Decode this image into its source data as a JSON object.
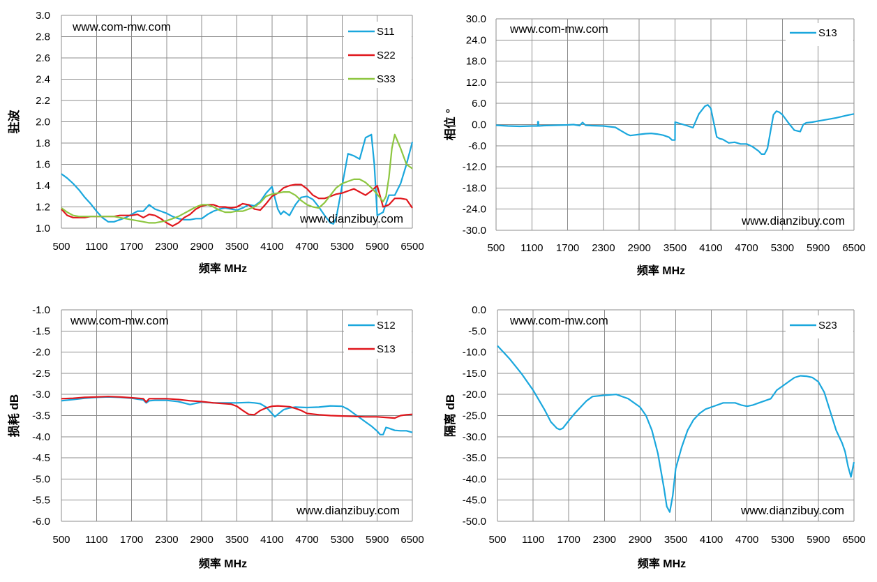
{
  "chart_data": [
    {
      "type": "line",
      "ylabel": "驻波",
      "xlabel": "频率 MHz",
      "xlim": [
        500,
        6500
      ],
      "ylim": [
        1.0,
        3.0
      ],
      "yticks": [
        "1.0",
        "1.2",
        "1.4",
        "1.6",
        "1.8",
        "2.0",
        "2.2",
        "2.4",
        "2.6",
        "2.8",
        "3.0"
      ],
      "xticks": [
        "500",
        "1100",
        "1700",
        "2300",
        "2900",
        "3500",
        "4100",
        "4700",
        "5300",
        "5900",
        "6500"
      ],
      "grid": true,
      "legend_position": "top-right",
      "watermarks": [
        "www.com-mw.com",
        "www.dianzibuy.com"
      ],
      "series": [
        {
          "name": "S11",
          "color": "#1aa7dd",
          "x": [
            500,
            600,
            700,
            800,
            900,
            1000,
            1100,
            1200,
            1300,
            1400,
            1500,
            1600,
            1700,
            1800,
            1900,
            2000,
            2100,
            2200,
            2300,
            2400,
            2500,
            2600,
            2700,
            2800,
            2900,
            3000,
            3100,
            3200,
            3300,
            3400,
            3500,
            3600,
            3700,
            3800,
            3900,
            4000,
            4100,
            4200,
            4250,
            4300,
            4400,
            4500,
            4600,
            4700,
            4800,
            4900,
            5000,
            5100,
            5150,
            5200,
            5300,
            5400,
            5500,
            5600,
            5700,
            5800,
            5850,
            5900,
            6000,
            6100,
            6200,
            6300,
            6400,
            6500
          ],
          "y": [
            1.51,
            1.47,
            1.42,
            1.36,
            1.29,
            1.23,
            1.16,
            1.1,
            1.06,
            1.06,
            1.08,
            1.1,
            1.13,
            1.16,
            1.16,
            1.22,
            1.18,
            1.16,
            1.14,
            1.11,
            1.09,
            1.08,
            1.08,
            1.09,
            1.09,
            1.13,
            1.16,
            1.18,
            1.19,
            1.18,
            1.17,
            1.19,
            1.22,
            1.21,
            1.25,
            1.33,
            1.39,
            1.18,
            1.13,
            1.16,
            1.12,
            1.22,
            1.29,
            1.3,
            1.27,
            1.2,
            1.12,
            1.05,
            1.04,
            1.1,
            1.4,
            1.7,
            1.68,
            1.65,
            1.85,
            1.88,
            1.6,
            1.12,
            1.15,
            1.31,
            1.31,
            1.42,
            1.6,
            1.81
          ]
        },
        {
          "name": "S22",
          "color": "#e0161c",
          "x": [
            500,
            600,
            700,
            800,
            900,
            1000,
            1100,
            1200,
            1300,
            1400,
            1500,
            1600,
            1700,
            1800,
            1900,
            2000,
            2100,
            2200,
            2300,
            2400,
            2500,
            2600,
            2700,
            2800,
            2900,
            3000,
            3100,
            3200,
            3300,
            3400,
            3500,
            3600,
            3700,
            3800,
            3900,
            4000,
            4100,
            4200,
            4300,
            4400,
            4500,
            4600,
            4700,
            4800,
            4900,
            5000,
            5100,
            5200,
            5300,
            5400,
            5500,
            5600,
            5700,
            5800,
            5900,
            6000,
            6100,
            6200,
            6300,
            6400,
            6500
          ],
          "y": [
            1.18,
            1.12,
            1.1,
            1.1,
            1.1,
            1.11,
            1.11,
            1.11,
            1.11,
            1.11,
            1.12,
            1.12,
            1.12,
            1.13,
            1.1,
            1.13,
            1.12,
            1.09,
            1.05,
            1.02,
            1.05,
            1.1,
            1.13,
            1.18,
            1.21,
            1.22,
            1.22,
            1.2,
            1.2,
            1.19,
            1.2,
            1.23,
            1.22,
            1.18,
            1.17,
            1.23,
            1.3,
            1.33,
            1.38,
            1.4,
            1.41,
            1.41,
            1.37,
            1.31,
            1.28,
            1.28,
            1.3,
            1.32,
            1.33,
            1.35,
            1.37,
            1.34,
            1.31,
            1.35,
            1.4,
            1.2,
            1.22,
            1.28,
            1.28,
            1.27,
            1.19
          ]
        },
        {
          "name": "S33",
          "color": "#8dc640",
          "x": [
            500,
            600,
            700,
            800,
            900,
            1000,
            1100,
            1200,
            1300,
            1400,
            1500,
            1600,
            1700,
            1800,
            1900,
            2000,
            2100,
            2200,
            2300,
            2400,
            2500,
            2600,
            2700,
            2800,
            2900,
            3000,
            3100,
            3200,
            3300,
            3400,
            3500,
            3600,
            3700,
            3800,
            3900,
            4000,
            4100,
            4200,
            4300,
            4400,
            4500,
            4600,
            4700,
            4800,
            4900,
            5000,
            5100,
            5200,
            5300,
            5400,
            5500,
            5600,
            5700,
            5800,
            5900,
            6000,
            6050,
            6100,
            6150,
            6200,
            6300,
            6400,
            6500
          ],
          "y": [
            1.19,
            1.15,
            1.12,
            1.11,
            1.11,
            1.11,
            1.11,
            1.11,
            1.11,
            1.11,
            1.1,
            1.09,
            1.08,
            1.07,
            1.06,
            1.05,
            1.05,
            1.06,
            1.07,
            1.09,
            1.11,
            1.14,
            1.17,
            1.2,
            1.22,
            1.22,
            1.2,
            1.17,
            1.15,
            1.15,
            1.16,
            1.16,
            1.18,
            1.2,
            1.24,
            1.3,
            1.32,
            1.33,
            1.34,
            1.34,
            1.31,
            1.26,
            1.22,
            1.2,
            1.19,
            1.24,
            1.31,
            1.38,
            1.42,
            1.44,
            1.46,
            1.46,
            1.43,
            1.38,
            1.32,
            1.25,
            1.3,
            1.48,
            1.75,
            1.88,
            1.75,
            1.6,
            1.56
          ]
        }
      ]
    },
    {
      "type": "line",
      "ylabel": "相位 °",
      "xlabel": "频率 MHz",
      "xlim": [
        500,
        6500
      ],
      "ylim": [
        -30,
        30
      ],
      "yticks": [
        "-30.0",
        "-24.0",
        "-18.0",
        "-12.0",
        "-6.0",
        "0.0",
        "6.0",
        "12.0",
        "18.0",
        "24.0",
        "30.0"
      ],
      "xticks": [
        "500",
        "1100",
        "1700",
        "2300",
        "2900",
        "3500",
        "4100",
        "4700",
        "5300",
        "5900",
        "6500"
      ],
      "grid": true,
      "legend_position": "top-right",
      "watermarks": [
        "www.com-mw.com",
        "www.dianzibuy.com"
      ],
      "series": [
        {
          "name": "S13",
          "color": "#1aa7dd",
          "x": [
            500,
            700,
            900,
            1100,
            1200,
            1201,
            1210,
            1211,
            1300,
            1500,
            1700,
            1800,
            1900,
            1950,
            2000,
            2100,
            2300,
            2500,
            2600,
            2700,
            2750,
            2800,
            2900,
            3000,
            3100,
            3200,
            3300,
            3400,
            3450,
            3500,
            3501,
            3600,
            3700,
            3800,
            3900,
            4000,
            4050,
            4100,
            4200,
            4250,
            4300,
            4400,
            4500,
            4600,
            4700,
            4800,
            4900,
            4950,
            5000,
            5050,
            5100,
            5150,
            5200,
            5250,
            5300,
            5400,
            5500,
            5600,
            5650,
            5700,
            5800,
            5900,
            6000,
            6100,
            6200,
            6300,
            6400,
            6500
          ],
          "y": [
            -0.2,
            -0.4,
            -0.5,
            -0.4,
            -0.4,
            0.8,
            0.8,
            -0.4,
            -0.3,
            -0.2,
            -0.1,
            0.0,
            -0.3,
            0.6,
            -0.2,
            -0.3,
            -0.4,
            -0.8,
            -1.8,
            -2.8,
            -3.1,
            -3.0,
            -2.8,
            -2.6,
            -2.5,
            -2.7,
            -3.0,
            -3.6,
            -4.4,
            -4.4,
            0.7,
            0.2,
            -0.3,
            -0.9,
            3.0,
            5.2,
            5.6,
            4.6,
            -3.5,
            -4.0,
            -4.2,
            -5.2,
            -5.0,
            -5.5,
            -5.5,
            -6.3,
            -7.5,
            -8.4,
            -8.4,
            -6.8,
            -2.0,
            2.8,
            3.8,
            3.5,
            2.8,
            0.5,
            -1.6,
            -2.0,
            0.0,
            0.5,
            0.7,
            1.0,
            1.3,
            1.6,
            1.9,
            2.3,
            2.7,
            3.0
          ]
        }
      ]
    },
    {
      "type": "line",
      "ylabel": "损耗 dB",
      "xlabel": "频率 MHz",
      "xlim": [
        500,
        6500
      ],
      "ylim": [
        -6.0,
        -1.0
      ],
      "yticks": [
        "-6.0",
        "-5.5",
        "-5.0",
        "-4.5",
        "-4.0",
        "-3.5",
        "-3.0",
        "-2.5",
        "-2.0",
        "-1.5",
        "-1.0"
      ],
      "xticks": [
        "500",
        "1100",
        "1700",
        "2300",
        "2900",
        "3500",
        "4100",
        "4700",
        "5300",
        "5900",
        "6500"
      ],
      "grid": true,
      "legend_position": "top-right",
      "watermarks": [
        "www.com-mw.com",
        "www.dianzibuy.com"
      ],
      "series": [
        {
          "name": "S12",
          "color": "#1aa7dd",
          "x": [
            500,
            700,
            900,
            1100,
            1300,
            1500,
            1700,
            1900,
            1950,
            2000,
            2100,
            2300,
            2500,
            2700,
            2800,
            2900,
            3100,
            3300,
            3500,
            3700,
            3800,
            3900,
            4000,
            4100,
            4150,
            4200,
            4300,
            4400,
            4500,
            4700,
            4900,
            5100,
            5300,
            5400,
            5500,
            5600,
            5700,
            5800,
            5900,
            5950,
            6000,
            6050,
            6100,
            6200,
            6300,
            6400,
            6500
          ],
          "y": [
            -3.15,
            -3.12,
            -3.09,
            -3.07,
            -3.06,
            -3.07,
            -3.09,
            -3.13,
            -3.2,
            -3.15,
            -3.14,
            -3.14,
            -3.17,
            -3.24,
            -3.21,
            -3.18,
            -3.2,
            -3.2,
            -3.2,
            -3.19,
            -3.2,
            -3.22,
            -3.3,
            -3.45,
            -3.53,
            -3.47,
            -3.36,
            -3.32,
            -3.3,
            -3.31,
            -3.3,
            -3.27,
            -3.28,
            -3.35,
            -3.45,
            -3.55,
            -3.65,
            -3.75,
            -3.87,
            -3.95,
            -3.95,
            -3.78,
            -3.8,
            -3.85,
            -3.86,
            -3.86,
            -3.9
          ]
        },
        {
          "name": "S13",
          "color": "#e0161c",
          "x": [
            500,
            700,
            900,
            1100,
            1300,
            1500,
            1700,
            1900,
            1950,
            2000,
            2100,
            2300,
            2500,
            2700,
            2900,
            3100,
            3300,
            3400,
            3500,
            3600,
            3700,
            3800,
            3900,
            4000,
            4100,
            4200,
            4300,
            4400,
            4500,
            4600,
            4700,
            4900,
            5100,
            5300,
            5500,
            5700,
            5900,
            6100,
            6200,
            6300,
            6400,
            6500
          ],
          "y": [
            -3.1,
            -3.09,
            -3.07,
            -3.06,
            -3.05,
            -3.06,
            -3.08,
            -3.1,
            -3.18,
            -3.1,
            -3.1,
            -3.1,
            -3.12,
            -3.15,
            -3.17,
            -3.2,
            -3.22,
            -3.23,
            -3.28,
            -3.38,
            -3.47,
            -3.48,
            -3.38,
            -3.32,
            -3.28,
            -3.27,
            -3.28,
            -3.29,
            -3.33,
            -3.38,
            -3.45,
            -3.48,
            -3.5,
            -3.51,
            -3.52,
            -3.53,
            -3.53,
            -3.55,
            -3.56,
            -3.5,
            -3.48,
            -3.47
          ]
        }
      ]
    },
    {
      "type": "line",
      "ylabel": "隔离 dB",
      "xlabel": "频率 MHz",
      "xlim": [
        500,
        6500
      ],
      "ylim": [
        -50,
        0
      ],
      "yticks": [
        "-50.0",
        "-45.0",
        "-40.0",
        "-35.0",
        "-30.0",
        "-25.0",
        "-20.0",
        "-15.0",
        "-10.0",
        "-5.0",
        "0.0"
      ],
      "xticks": [
        "500",
        "1100",
        "1700",
        "2300",
        "2900",
        "3500",
        "4100",
        "4700",
        "5300",
        "5900",
        "6500"
      ],
      "grid": true,
      "legend_position": "top-right",
      "watermarks": [
        "www.com-mw.com",
        "www.dianzibuy.com"
      ],
      "series": [
        {
          "name": "S23",
          "color": "#1aa7dd",
          "x": [
            500,
            700,
            900,
            1100,
            1300,
            1400,
            1500,
            1550,
            1600,
            1700,
            1800,
            1900,
            2000,
            2100,
            2300,
            2500,
            2700,
            2900,
            3000,
            3100,
            3200,
            3300,
            3350,
            3400,
            3450,
            3500,
            3600,
            3700,
            3800,
            3900,
            4000,
            4100,
            4200,
            4300,
            4400,
            4500,
            4600,
            4700,
            4800,
            4900,
            5000,
            5100,
            5200,
            5300,
            5400,
            5500,
            5600,
            5700,
            5800,
            5900,
            6000,
            6100,
            6200,
            6300,
            6350,
            6400,
            6450,
            6500
          ],
          "y": [
            -8.5,
            -11.5,
            -15.0,
            -19.0,
            -23.8,
            -26.5,
            -28.0,
            -28.3,
            -28.0,
            -26.2,
            -24.5,
            -23.0,
            -21.5,
            -20.5,
            -20.2,
            -20.0,
            -21.0,
            -23.0,
            -25.0,
            -28.5,
            -34.0,
            -42.0,
            -46.5,
            -47.8,
            -44.0,
            -37.5,
            -32.5,
            -28.5,
            -26.0,
            -24.5,
            -23.5,
            -23.0,
            -22.5,
            -22.0,
            -22.0,
            -22.0,
            -22.5,
            -22.8,
            -22.5,
            -22.0,
            -21.5,
            -21.0,
            -19.0,
            -18.0,
            -17.0,
            -16.0,
            -15.6,
            -15.7,
            -16.0,
            -17.0,
            -19.5,
            -24.0,
            -28.5,
            -31.5,
            -33.5,
            -37.0,
            -39.5,
            -36.0
          ]
        }
      ]
    }
  ]
}
